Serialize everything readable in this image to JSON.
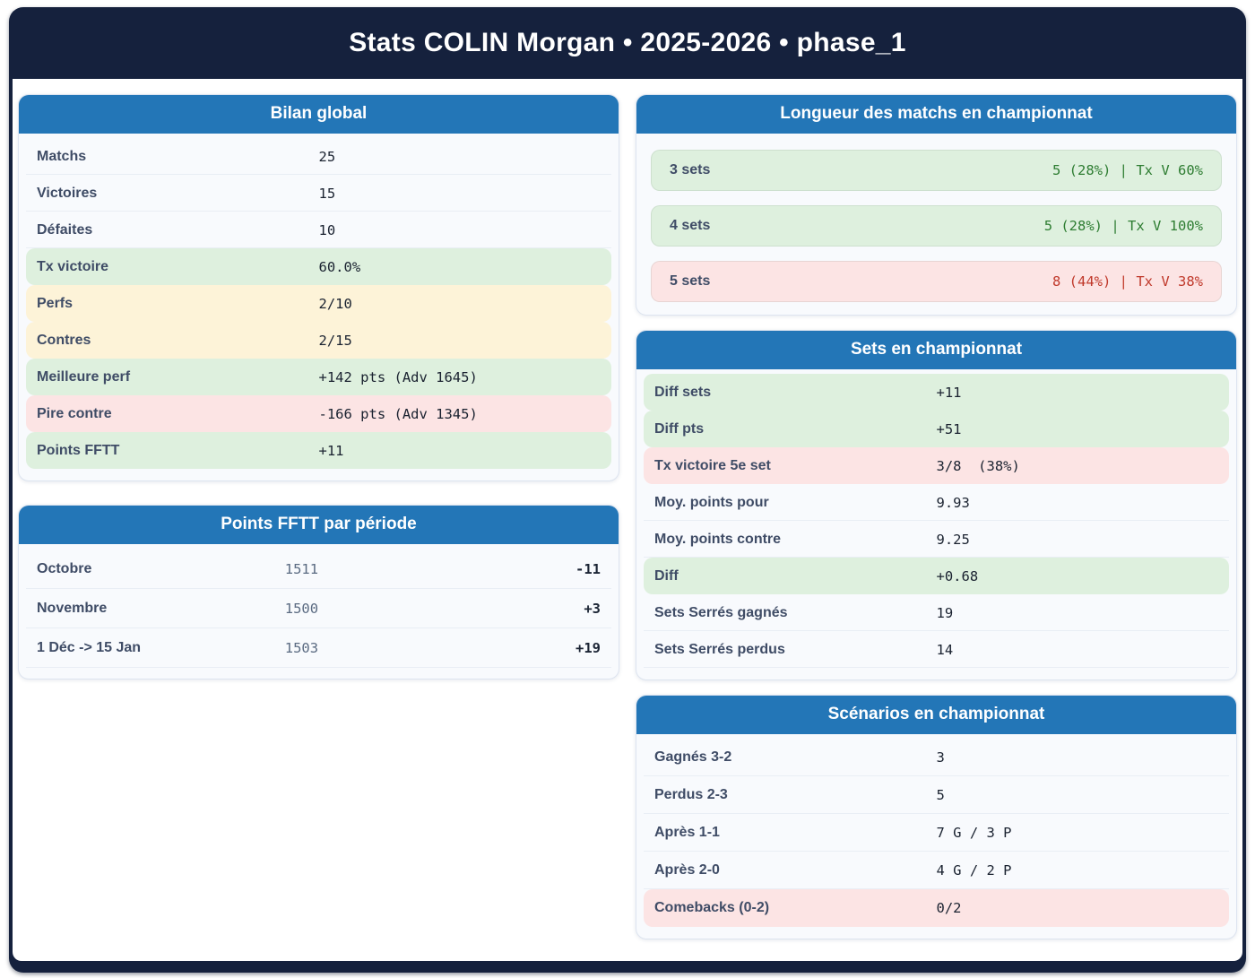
{
  "title": "Stats COLIN Morgan • 2025-2026 • phase_1",
  "colors": {
    "frame_navy": "#15213d",
    "card_header_blue": "#2376b7",
    "green_bg": "#def0de",
    "green_text": "#2e7d32",
    "yellow_bg": "#fdf3d8",
    "red_bg": "#fce4e4",
    "red_text": "#c0392b"
  },
  "cards": {
    "bilan": {
      "title": "Bilan global",
      "rows": [
        {
          "label": "Matchs",
          "value": "25"
        },
        {
          "label": "Victoires",
          "value": "15"
        },
        {
          "label": "Défaites",
          "value": "10"
        },
        {
          "label": "Tx victoire",
          "value": "60.0%"
        },
        {
          "label": "Perfs",
          "value": "2/10"
        },
        {
          "label": "Contres",
          "value": "2/15"
        },
        {
          "label": "Meilleure perf",
          "value": "+142 pts (Adv 1645)"
        },
        {
          "label": "Pire contre",
          "value": "-166 pts (Adv 1345)"
        },
        {
          "label": "Points FFTT",
          "value": "+11"
        }
      ]
    },
    "periode": {
      "title": "Points FFTT par période",
      "rows": [
        {
          "label": "Octobre",
          "value": "1511",
          "delta": "-11"
        },
        {
          "label": "Novembre",
          "value": "1500",
          "delta": "+3"
        },
        {
          "label": "1 Déc -> 15 Jan",
          "value": "1503",
          "delta": "+19"
        }
      ]
    },
    "longueur": {
      "title": "Longueur des matchs en championnat",
      "rows": [
        {
          "label": "3 sets",
          "value": "5 (28%) | Tx V 60%"
        },
        {
          "label": "4 sets",
          "value": "5 (28%) | Tx V 100%"
        },
        {
          "label": "5 sets",
          "value": "8 (44%) | Tx V 38%"
        }
      ]
    },
    "sets": {
      "title": "Sets en championnat",
      "rows": [
        {
          "label": "Diff sets",
          "value": "+11"
        },
        {
          "label": "Diff pts",
          "value": "+51"
        },
        {
          "label": "Tx victoire 5e set",
          "value": "3/8  (38%)"
        },
        {
          "label": "Moy. points pour",
          "value": "9.93"
        },
        {
          "label": "Moy. points contre",
          "value": "9.25"
        },
        {
          "label": "Diff",
          "value": "+0.68"
        },
        {
          "label": "Sets Serrés gagnés",
          "value": "19"
        },
        {
          "label": "Sets Serrés perdus",
          "value": "14"
        }
      ]
    },
    "scenarios": {
      "title": "Scénarios en championnat",
      "rows": [
        {
          "label": "Gagnés 3-2",
          "value": "3"
        },
        {
          "label": "Perdus 2-3",
          "value": "5"
        },
        {
          "label": "Après 1-1",
          "value": "7 G / 3 P"
        },
        {
          "label": "Après 2-0",
          "value": "4 G / 2 P"
        },
        {
          "label": "Comebacks (0-2)",
          "value": "0/2"
        }
      ]
    }
  }
}
